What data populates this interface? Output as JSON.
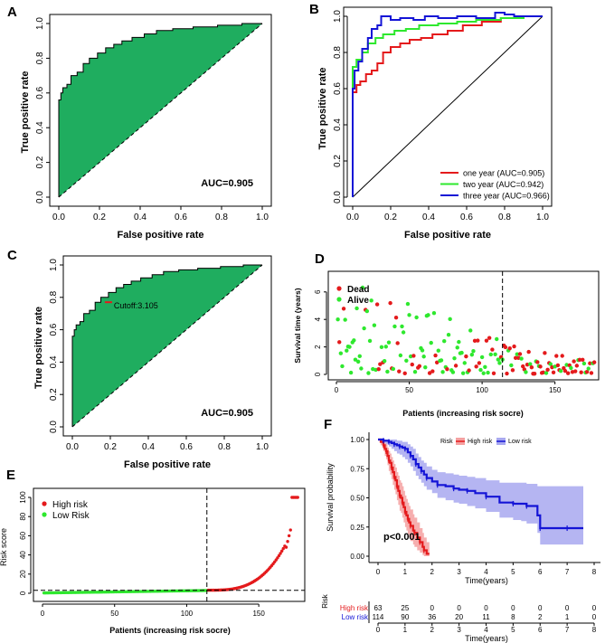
{
  "colors": {
    "roc_fill": "#1fad5f",
    "red": "#e41a1c",
    "green": "#2ee82e",
    "blue": "#1414d6",
    "high_fill": "#f5a0a0",
    "low_fill": "#a8a8f0",
    "axis": "#000000"
  },
  "chart_data": [
    {
      "panel": "A",
      "type": "line",
      "xlabel": "False positive rate",
      "ylabel": "True positive rate",
      "xlim": [
        0,
        1
      ],
      "ylim": [
        0,
        1
      ],
      "x_ticks": [
        "0.0",
        "0.2",
        "0.4",
        "0.6",
        "0.8",
        "1.0"
      ],
      "y_ticks": [
        "0.0",
        "0.2",
        "0.4",
        "0.6",
        "0.8",
        "1.0"
      ],
      "annotation": "AUC=0.905",
      "series": [
        {
          "name": "ROC",
          "x": [
            0,
            0,
            0.01,
            0.01,
            0.02,
            0.02,
            0.04,
            0.04,
            0.06,
            0.06,
            0.09,
            0.09,
            0.12,
            0.12,
            0.15,
            0.15,
            0.19,
            0.19,
            0.23,
            0.23,
            0.27,
            0.27,
            0.31,
            0.31,
            0.36,
            0.36,
            0.42,
            0.42,
            0.48,
            0.48,
            0.56,
            0.56,
            0.66,
            0.66,
            0.78,
            0.78,
            0.9,
            0.9,
            1.0
          ],
          "y": [
            0,
            0.56,
            0.56,
            0.6,
            0.6,
            0.63,
            0.63,
            0.65,
            0.65,
            0.7,
            0.7,
            0.72,
            0.72,
            0.77,
            0.77,
            0.8,
            0.8,
            0.83,
            0.83,
            0.86,
            0.86,
            0.88,
            0.88,
            0.9,
            0.9,
            0.92,
            0.92,
            0.94,
            0.94,
            0.96,
            0.96,
            0.97,
            0.97,
            0.98,
            0.98,
            0.99,
            0.99,
            1.0,
            1.0
          ]
        }
      ]
    },
    {
      "panel": "B",
      "type": "line",
      "xlabel": "False positive rate",
      "ylabel": "True positive rate",
      "xlim": [
        0,
        1
      ],
      "ylim": [
        0,
        1
      ],
      "x_ticks": [
        "0.0",
        "0.2",
        "0.4",
        "0.6",
        "0.8",
        "1.0"
      ],
      "y_ticks": [
        "0.0",
        "0.2",
        "0.4",
        "0.6",
        "0.8",
        "1.0"
      ],
      "legend_position": "bottom-right",
      "series": [
        {
          "name": "one year (AUC=0.905)",
          "color": "red",
          "x": [
            0,
            0,
            0.02,
            0.02,
            0.04,
            0.04,
            0.07,
            0.07,
            0.1,
            0.1,
            0.13,
            0.13,
            0.16,
            0.16,
            0.2,
            0.2,
            0.25,
            0.25,
            0.3,
            0.3,
            0.36,
            0.36,
            0.42,
            0.42,
            0.5,
            0.5,
            0.58,
            0.58,
            0.68,
            0.68,
            0.78,
            0.78,
            0.9,
            0.9,
            1.0
          ],
          "y": [
            0,
            0.58,
            0.58,
            0.62,
            0.62,
            0.64,
            0.64,
            0.68,
            0.68,
            0.7,
            0.7,
            0.74,
            0.74,
            0.8,
            0.8,
            0.83,
            0.83,
            0.85,
            0.85,
            0.87,
            0.87,
            0.88,
            0.88,
            0.9,
            0.9,
            0.92,
            0.92,
            0.95,
            0.95,
            0.97,
            0.97,
            0.99,
            0.99,
            1.0,
            1.0
          ]
        },
        {
          "name": "two year (AUC=0.942)",
          "color": "green",
          "x": [
            0,
            0,
            0.02,
            0.02,
            0.05,
            0.05,
            0.08,
            0.08,
            0.12,
            0.12,
            0.16,
            0.16,
            0.22,
            0.22,
            0.28,
            0.28,
            0.35,
            0.35,
            0.45,
            0.45,
            0.55,
            0.55,
            0.65,
            0.65,
            0.78,
            0.78,
            0.9,
            0.9,
            1.0
          ],
          "y": [
            0,
            0.72,
            0.72,
            0.76,
            0.76,
            0.8,
            0.8,
            0.85,
            0.85,
            0.88,
            0.88,
            0.9,
            0.9,
            0.92,
            0.92,
            0.93,
            0.93,
            0.95,
            0.95,
            0.96,
            0.96,
            0.97,
            0.97,
            0.98,
            0.98,
            0.99,
            0.99,
            1.0,
            1.0
          ]
        },
        {
          "name": "three year (AUC=0.966)",
          "color": "blue",
          "x": [
            0,
            0,
            0.01,
            0.01,
            0.03,
            0.03,
            0.05,
            0.05,
            0.08,
            0.08,
            0.1,
            0.1,
            0.13,
            0.13,
            0.15,
            0.15,
            0.2,
            0.2,
            0.25,
            0.25,
            0.32,
            0.32,
            0.38,
            0.38,
            0.45,
            0.45,
            0.55,
            0.55,
            0.65,
            0.65,
            0.75,
            0.75,
            0.8,
            0.8,
            0.85,
            0.85,
            1.0
          ],
          "y": [
            0,
            0.6,
            0.6,
            0.7,
            0.7,
            0.75,
            0.75,
            0.82,
            0.82,
            0.88,
            0.88,
            0.93,
            0.93,
            0.95,
            0.95,
            1.0,
            1.0,
            0.98,
            0.98,
            0.99,
            0.99,
            0.98,
            0.98,
            1.0,
            1.0,
            0.99,
            0.99,
            1.0,
            1.0,
            0.99,
            0.99,
            1.02,
            1.02,
            1.01,
            1.01,
            1.0,
            1.0
          ]
        }
      ]
    },
    {
      "panel": "C",
      "type": "line",
      "xlabel": "False positive rate",
      "ylabel": "True positive rate",
      "xlim": [
        0,
        1
      ],
      "ylim": [
        0,
        1
      ],
      "x_ticks": [
        "0.0",
        "0.2",
        "0.4",
        "0.6",
        "0.8",
        "1.0"
      ],
      "y_ticks": [
        "0.0",
        "0.2",
        "0.4",
        "0.6",
        "0.8",
        "1.0"
      ],
      "annotation": "AUC=0.905",
      "cutoff_label": "Cutoff:3.105",
      "cutoff_point": [
        0.19,
        0.77
      ],
      "series": [
        {
          "name": "ROC",
          "x": [
            0,
            0,
            0.01,
            0.01,
            0.02,
            0.02,
            0.04,
            0.04,
            0.06,
            0.06,
            0.09,
            0.09,
            0.12,
            0.12,
            0.15,
            0.15,
            0.19,
            0.19,
            0.23,
            0.23,
            0.27,
            0.27,
            0.31,
            0.31,
            0.36,
            0.36,
            0.42,
            0.42,
            0.48,
            0.48,
            0.56,
            0.56,
            0.66,
            0.66,
            0.78,
            0.78,
            0.9,
            0.9,
            1.0
          ],
          "y": [
            0,
            0.56,
            0.56,
            0.6,
            0.6,
            0.63,
            0.63,
            0.65,
            0.65,
            0.7,
            0.7,
            0.72,
            0.72,
            0.77,
            0.77,
            0.8,
            0.8,
            0.83,
            0.83,
            0.86,
            0.86,
            0.88,
            0.88,
            0.9,
            0.9,
            0.92,
            0.92,
            0.94,
            0.94,
            0.96,
            0.96,
            0.97,
            0.97,
            0.98,
            0.98,
            0.99,
            0.99,
            1.0,
            1.0
          ]
        }
      ]
    },
    {
      "panel": "D",
      "type": "scatter",
      "xlabel": "Patients (increasing risk socre)",
      "ylabel": "Survival time (years)",
      "xlim": [
        0,
        177
      ],
      "ylim": [
        0,
        7.5
      ],
      "x_ticks": [
        "0",
        "50",
        "100",
        "150"
      ],
      "y_ticks": [
        "0",
        "2",
        "4",
        "6"
      ],
      "cutoff_x": 114,
      "legend": [
        "Dead",
        "Alive"
      ],
      "n_points": 177
    },
    {
      "panel": "E",
      "type": "scatter",
      "xlabel": "Patients (increasing risk socre)",
      "ylabel": "Risk score",
      "xlim": [
        0,
        177
      ],
      "ylim": [
        0,
        100
      ],
      "x_ticks": [
        "0",
        "50",
        "100",
        "150"
      ],
      "y_ticks": [
        "0",
        "20",
        "40",
        "60",
        "80",
        "100"
      ],
      "cutoff_x": 114,
      "cutoff_y": 3.105,
      "legend": [
        "High risk",
        "Low Risk"
      ],
      "n_points": 177
    },
    {
      "panel": "F",
      "type": "line",
      "xlabel": "Time(years)",
      "ylabel": "Survival probability",
      "xlim": [
        0,
        8
      ],
      "ylim": [
        0,
        1
      ],
      "x_ticks": [
        "0",
        "1",
        "2",
        "3",
        "4",
        "5",
        "6",
        "7",
        "8"
      ],
      "y_ticks": [
        "0.00",
        "0.25",
        "0.50",
        "0.75",
        "1.00"
      ],
      "legend_title": "Risk",
      "annotation": "p<0.001",
      "series": [
        {
          "name": "High risk",
          "color": "red",
          "x": [
            0,
            0.1,
            0.2,
            0.25,
            0.3,
            0.35,
            0.4,
            0.45,
            0.5,
            0.55,
            0.6,
            0.65,
            0.7,
            0.75,
            0.8,
            0.85,
            0.9,
            0.95,
            1.0,
            1.05,
            1.1,
            1.15,
            1.2,
            1.3,
            1.35,
            1.45,
            1.55,
            1.65,
            1.7,
            1.8,
            1.9
          ],
          "y": [
            1.0,
            0.98,
            0.95,
            0.92,
            0.9,
            0.86,
            0.82,
            0.8,
            0.76,
            0.72,
            0.68,
            0.65,
            0.6,
            0.56,
            0.52,
            0.5,
            0.46,
            0.42,
            0.38,
            0.35,
            0.32,
            0.29,
            0.26,
            0.22,
            0.2,
            0.16,
            0.12,
            0.08,
            0.05,
            0.02,
            0.02
          ],
          "ci_upper": [
            1.0,
            1.0,
            0.99,
            0.97,
            0.96,
            0.93,
            0.9,
            0.88,
            0.85,
            0.82,
            0.79,
            0.76,
            0.72,
            0.69,
            0.65,
            0.63,
            0.6,
            0.56,
            0.52,
            0.49,
            0.46,
            0.43,
            0.4,
            0.36,
            0.33,
            0.29,
            0.24,
            0.2,
            0.16,
            0.12,
            0.12
          ],
          "ci_lower": [
            1.0,
            0.95,
            0.9,
            0.86,
            0.83,
            0.78,
            0.73,
            0.7,
            0.66,
            0.61,
            0.57,
            0.53,
            0.48,
            0.44,
            0.39,
            0.37,
            0.33,
            0.29,
            0.25,
            0.22,
            0.19,
            0.16,
            0.13,
            0.1,
            0.08,
            0.05,
            0.03,
            0.01,
            0.0,
            0.0,
            0.0
          ]
        },
        {
          "name": "Low risk",
          "color": "blue",
          "x": [
            0,
            0.1,
            0.2,
            0.3,
            0.4,
            0.5,
            0.6,
            0.7,
            0.8,
            0.9,
            1.0,
            1.1,
            1.2,
            1.3,
            1.4,
            1.5,
            1.6,
            1.7,
            1.8,
            2.0,
            2.2,
            2.5,
            2.8,
            3.0,
            3.3,
            3.6,
            4.0,
            4.5,
            5.0,
            5.3,
            5.5,
            5.9,
            6.0,
            6.5,
            7.0,
            7.6
          ],
          "y": [
            1.0,
            1.0,
            0.99,
            0.99,
            0.98,
            0.97,
            0.96,
            0.95,
            0.94,
            0.93,
            0.92,
            0.89,
            0.86,
            0.83,
            0.79,
            0.76,
            0.73,
            0.7,
            0.67,
            0.64,
            0.61,
            0.6,
            0.58,
            0.57,
            0.56,
            0.54,
            0.51,
            0.46,
            0.45,
            0.45,
            0.43,
            0.35,
            0.24,
            0.24,
            0.24,
            0.24
          ],
          "ci_upper": [
            1.0,
            1.0,
            1.0,
            1.0,
            1.0,
            1.0,
            1.0,
            0.99,
            0.99,
            0.98,
            0.98,
            0.96,
            0.94,
            0.92,
            0.88,
            0.85,
            0.82,
            0.8,
            0.77,
            0.74,
            0.72,
            0.71,
            0.7,
            0.69,
            0.68,
            0.67,
            0.65,
            0.63,
            0.63,
            0.63,
            0.62,
            0.6,
            0.6,
            0.6,
            0.6,
            0.6
          ],
          "ci_lower": [
            1.0,
            0.99,
            0.97,
            0.96,
            0.94,
            0.92,
            0.9,
            0.88,
            0.87,
            0.85,
            0.83,
            0.8,
            0.77,
            0.73,
            0.69,
            0.66,
            0.63,
            0.6,
            0.57,
            0.54,
            0.5,
            0.48,
            0.46,
            0.45,
            0.43,
            0.41,
            0.38,
            0.33,
            0.31,
            0.3,
            0.28,
            0.2,
            0.1,
            0.1,
            0.1,
            0.1
          ]
        }
      ],
      "risk_table": {
        "title": "Risk",
        "rows": [
          {
            "name": "High risk",
            "color": "red",
            "counts": [
              63,
              25,
              0,
              0,
              0,
              0,
              0,
              0,
              0
            ]
          },
          {
            "name": "Low risk",
            "color": "blue",
            "counts": [
              114,
              90,
              36,
              20,
              11,
              8,
              2,
              1,
              0
            ]
          }
        ],
        "x_ticks": [
          "0",
          "1",
          "2",
          "3",
          "4",
          "5",
          "6",
          "7",
          "8"
        ],
        "xlabel": "Time(years)"
      }
    }
  ]
}
